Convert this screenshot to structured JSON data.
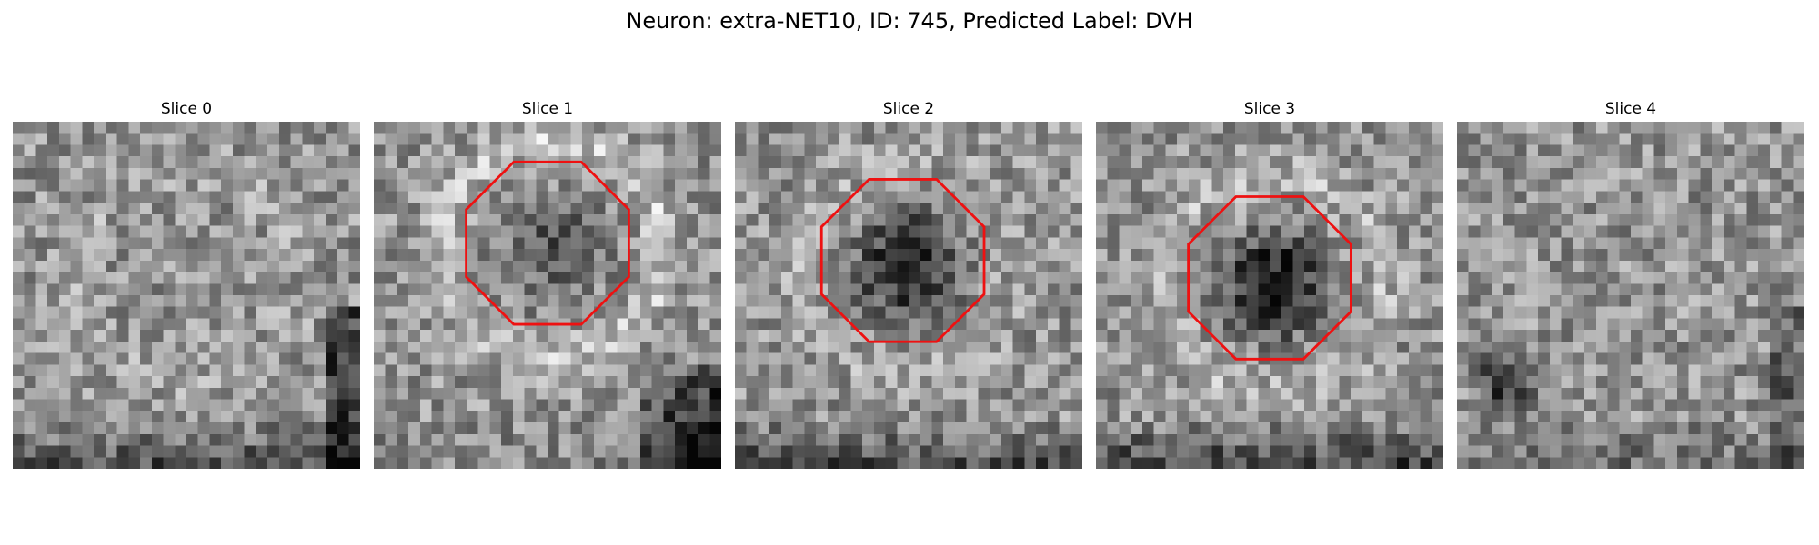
{
  "figure": {
    "title": "Neuron: extra-NET10, ID: 745, Predicted Label: DVH"
  },
  "panels": [
    {
      "title": "Slice 0",
      "marker": false,
      "seed": 11,
      "dark_center": 0.0,
      "bright_arc": 0.15,
      "dark_right": 0.55,
      "dark_bottom": 0.45
    },
    {
      "title": "Slice 1",
      "marker": true,
      "seed": 23,
      "dark_center": 0.35,
      "bright_arc": 0.55,
      "dark_right": 0.0,
      "dark_bottom": 0.1,
      "dark_corner": 0.75
    },
    {
      "title": "Slice 2",
      "marker": true,
      "seed": 37,
      "dark_center": 0.75,
      "bright_arc": 0.2,
      "dark_right": 0.0,
      "dark_bottom": 0.5
    },
    {
      "title": "Slice 3",
      "marker": true,
      "seed": 53,
      "dark_center": 0.8,
      "bright_arc": 0.35,
      "dark_right": 0.0,
      "dark_bottom": 0.55
    },
    {
      "title": "Slice 4",
      "marker": false,
      "seed": 71,
      "dark_center": 0.0,
      "bright_arc": 0.0,
      "dark_right": 0.3,
      "dark_bottom": 0.25,
      "dark_blob": 0.8
    }
  ],
  "colors": {
    "marker": "#ee1111",
    "background": "#ffffff"
  }
}
